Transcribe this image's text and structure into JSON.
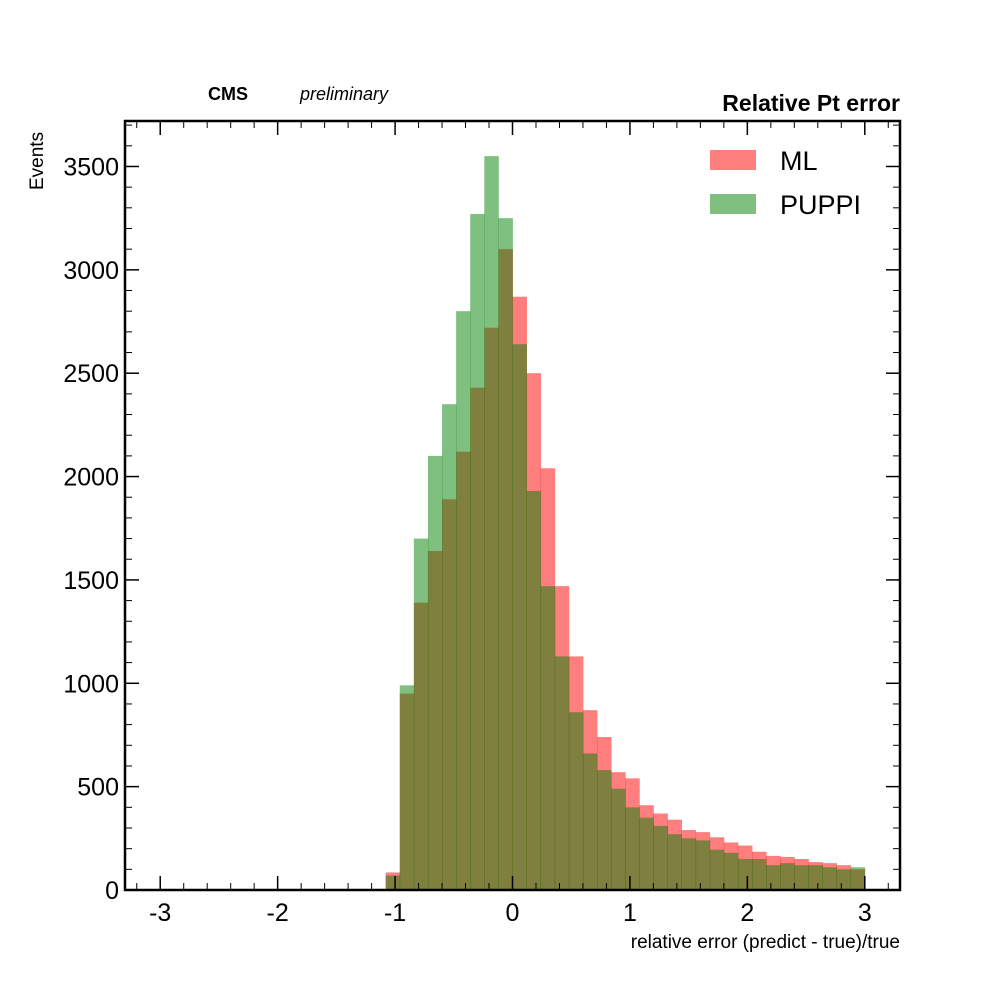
{
  "header": {
    "cms": "CMS",
    "preliminary": "preliminary",
    "title": "Relative Pt error"
  },
  "chart_data": {
    "type": "histogram",
    "title": "Relative Pt error",
    "xlabel": "relative error (predict - true)/true",
    "ylabel": "Events",
    "xlim": [
      -3.3,
      3.3
    ],
    "ylim": [
      0,
      3720
    ],
    "xticks": [
      -3,
      -2,
      -1,
      0,
      1,
      2,
      3
    ],
    "xtick_labels": [
      "-3",
      "-2",
      "-1",
      "0",
      "1",
      "2",
      "3"
    ],
    "yticks": [
      0,
      500,
      1000,
      1500,
      2000,
      2500,
      3000,
      3500
    ],
    "ytick_labels": [
      "0",
      "500",
      "1000",
      "1500",
      "2000",
      "2500",
      "3000",
      "3500"
    ],
    "grid": false,
    "legend_position": "top-right",
    "bin_start": -3,
    "bin_width": 0.12,
    "series": [
      {
        "name": "ML",
        "color": "#ff0000",
        "alpha": 0.5,
        "values": [
          0,
          0,
          0,
          0,
          0,
          0,
          0,
          0,
          0,
          0,
          0,
          0,
          0,
          0,
          0,
          0,
          85,
          950,
          1390,
          1640,
          1890,
          2120,
          2430,
          2720,
          3100,
          2870,
          2500,
          2040,
          1470,
          1130,
          870,
          740,
          570,
          540,
          410,
          370,
          340,
          290,
          280,
          255,
          230,
          215,
          185,
          165,
          160,
          150,
          135,
          130,
          120,
          100
        ]
      },
      {
        "name": "PUPPI",
        "color": "#008000",
        "alpha": 0.5,
        "values": [
          0,
          0,
          0,
          0,
          0,
          0,
          0,
          0,
          0,
          0,
          0,
          0,
          0,
          0,
          0,
          0,
          70,
          990,
          1700,
          2100,
          2350,
          2800,
          3270,
          3550,
          3250,
          2640,
          1930,
          1470,
          1130,
          860,
          660,
          580,
          490,
          400,
          350,
          310,
          270,
          250,
          240,
          195,
          180,
          150,
          150,
          120,
          130,
          120,
          120,
          110,
          100,
          110
        ]
      }
    ]
  }
}
